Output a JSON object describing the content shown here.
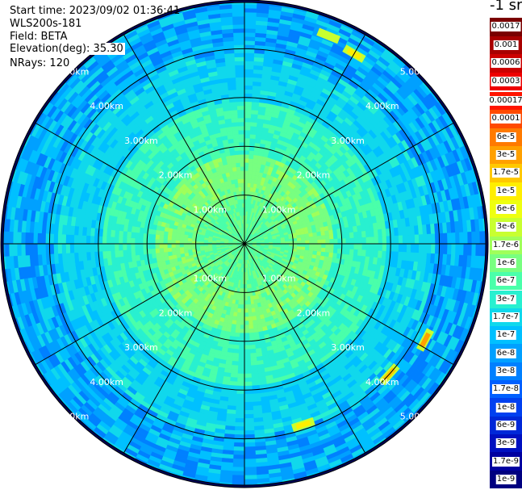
{
  "info": {
    "start_time": "Start time: 2023/09/02 01:36:41",
    "instrument": "WLS200s-181",
    "field": "Field: BETA",
    "elevation": "Elevation(deg): 35.30",
    "nrays": "NRays: 120"
  },
  "chart_data": {
    "type": "heatmap",
    "projection": "polar PPI",
    "colorbar_title": "-1 sr",
    "colorbar_labels_top": [
      "0.0017",
      "0.001",
      "0.0006",
      "0.0003"
    ],
    "colorbar_labels_main": [
      "0.00017",
      "0.0001",
      "6e-5",
      "3e-5",
      "1.7e-5",
      "1e-5",
      "6e-6",
      "3e-6",
      "1.7e-6",
      "1e-6",
      "6e-7",
      "3e-7",
      "1.7e-7",
      "1e-7",
      "6e-8",
      "3e-8",
      "1.7e-8",
      "1e-8",
      "6e-9",
      "3e-9",
      "1.7e-9",
      "1e-9"
    ],
    "colors_top": [
      "#7a0000",
      "#a80000",
      "#cc0000",
      "#ee0000"
    ],
    "colors_main": [
      "#ff1400",
      "#ff4a00",
      "#ff7a00",
      "#ffa000",
      "#ffc800",
      "#ffee00",
      "#eeff10",
      "#c8ff30",
      "#a0ff5a",
      "#78ff80",
      "#4affaa",
      "#28f0d0",
      "#10d8ec",
      "#00c0ff",
      "#00a0ff",
      "#0080ff",
      "#0060ff",
      "#0040f0",
      "#0028d8",
      "#0010c0",
      "#0000a0",
      "#000080"
    ],
    "range_rings_km": [
      1,
      2,
      3,
      4,
      5
    ],
    "ring_labels": [
      "1.00km",
      "2.00km",
      "3.00km",
      "4.00km",
      "5.00km"
    ],
    "max_range_km": 5,
    "rays": 120,
    "spokes_deg": [
      0,
      30,
      60,
      90,
      120,
      150,
      180,
      210,
      240,
      270,
      300,
      330
    ],
    "hotspots": [
      {
        "azimuth_deg": 22,
        "range_km": 4.6,
        "value": "3e-6"
      },
      {
        "azimuth_deg": 30,
        "range_km": 4.5,
        "value": "1e-5"
      },
      {
        "azimuth_deg": 118,
        "range_km": 4.2,
        "value": "3e-5"
      },
      {
        "azimuth_deg": 132,
        "range_km": 4.0,
        "value": "1.7e-5"
      },
      {
        "azimuth_deg": 162,
        "range_km": 3.9,
        "value": "1e-5"
      }
    ]
  }
}
